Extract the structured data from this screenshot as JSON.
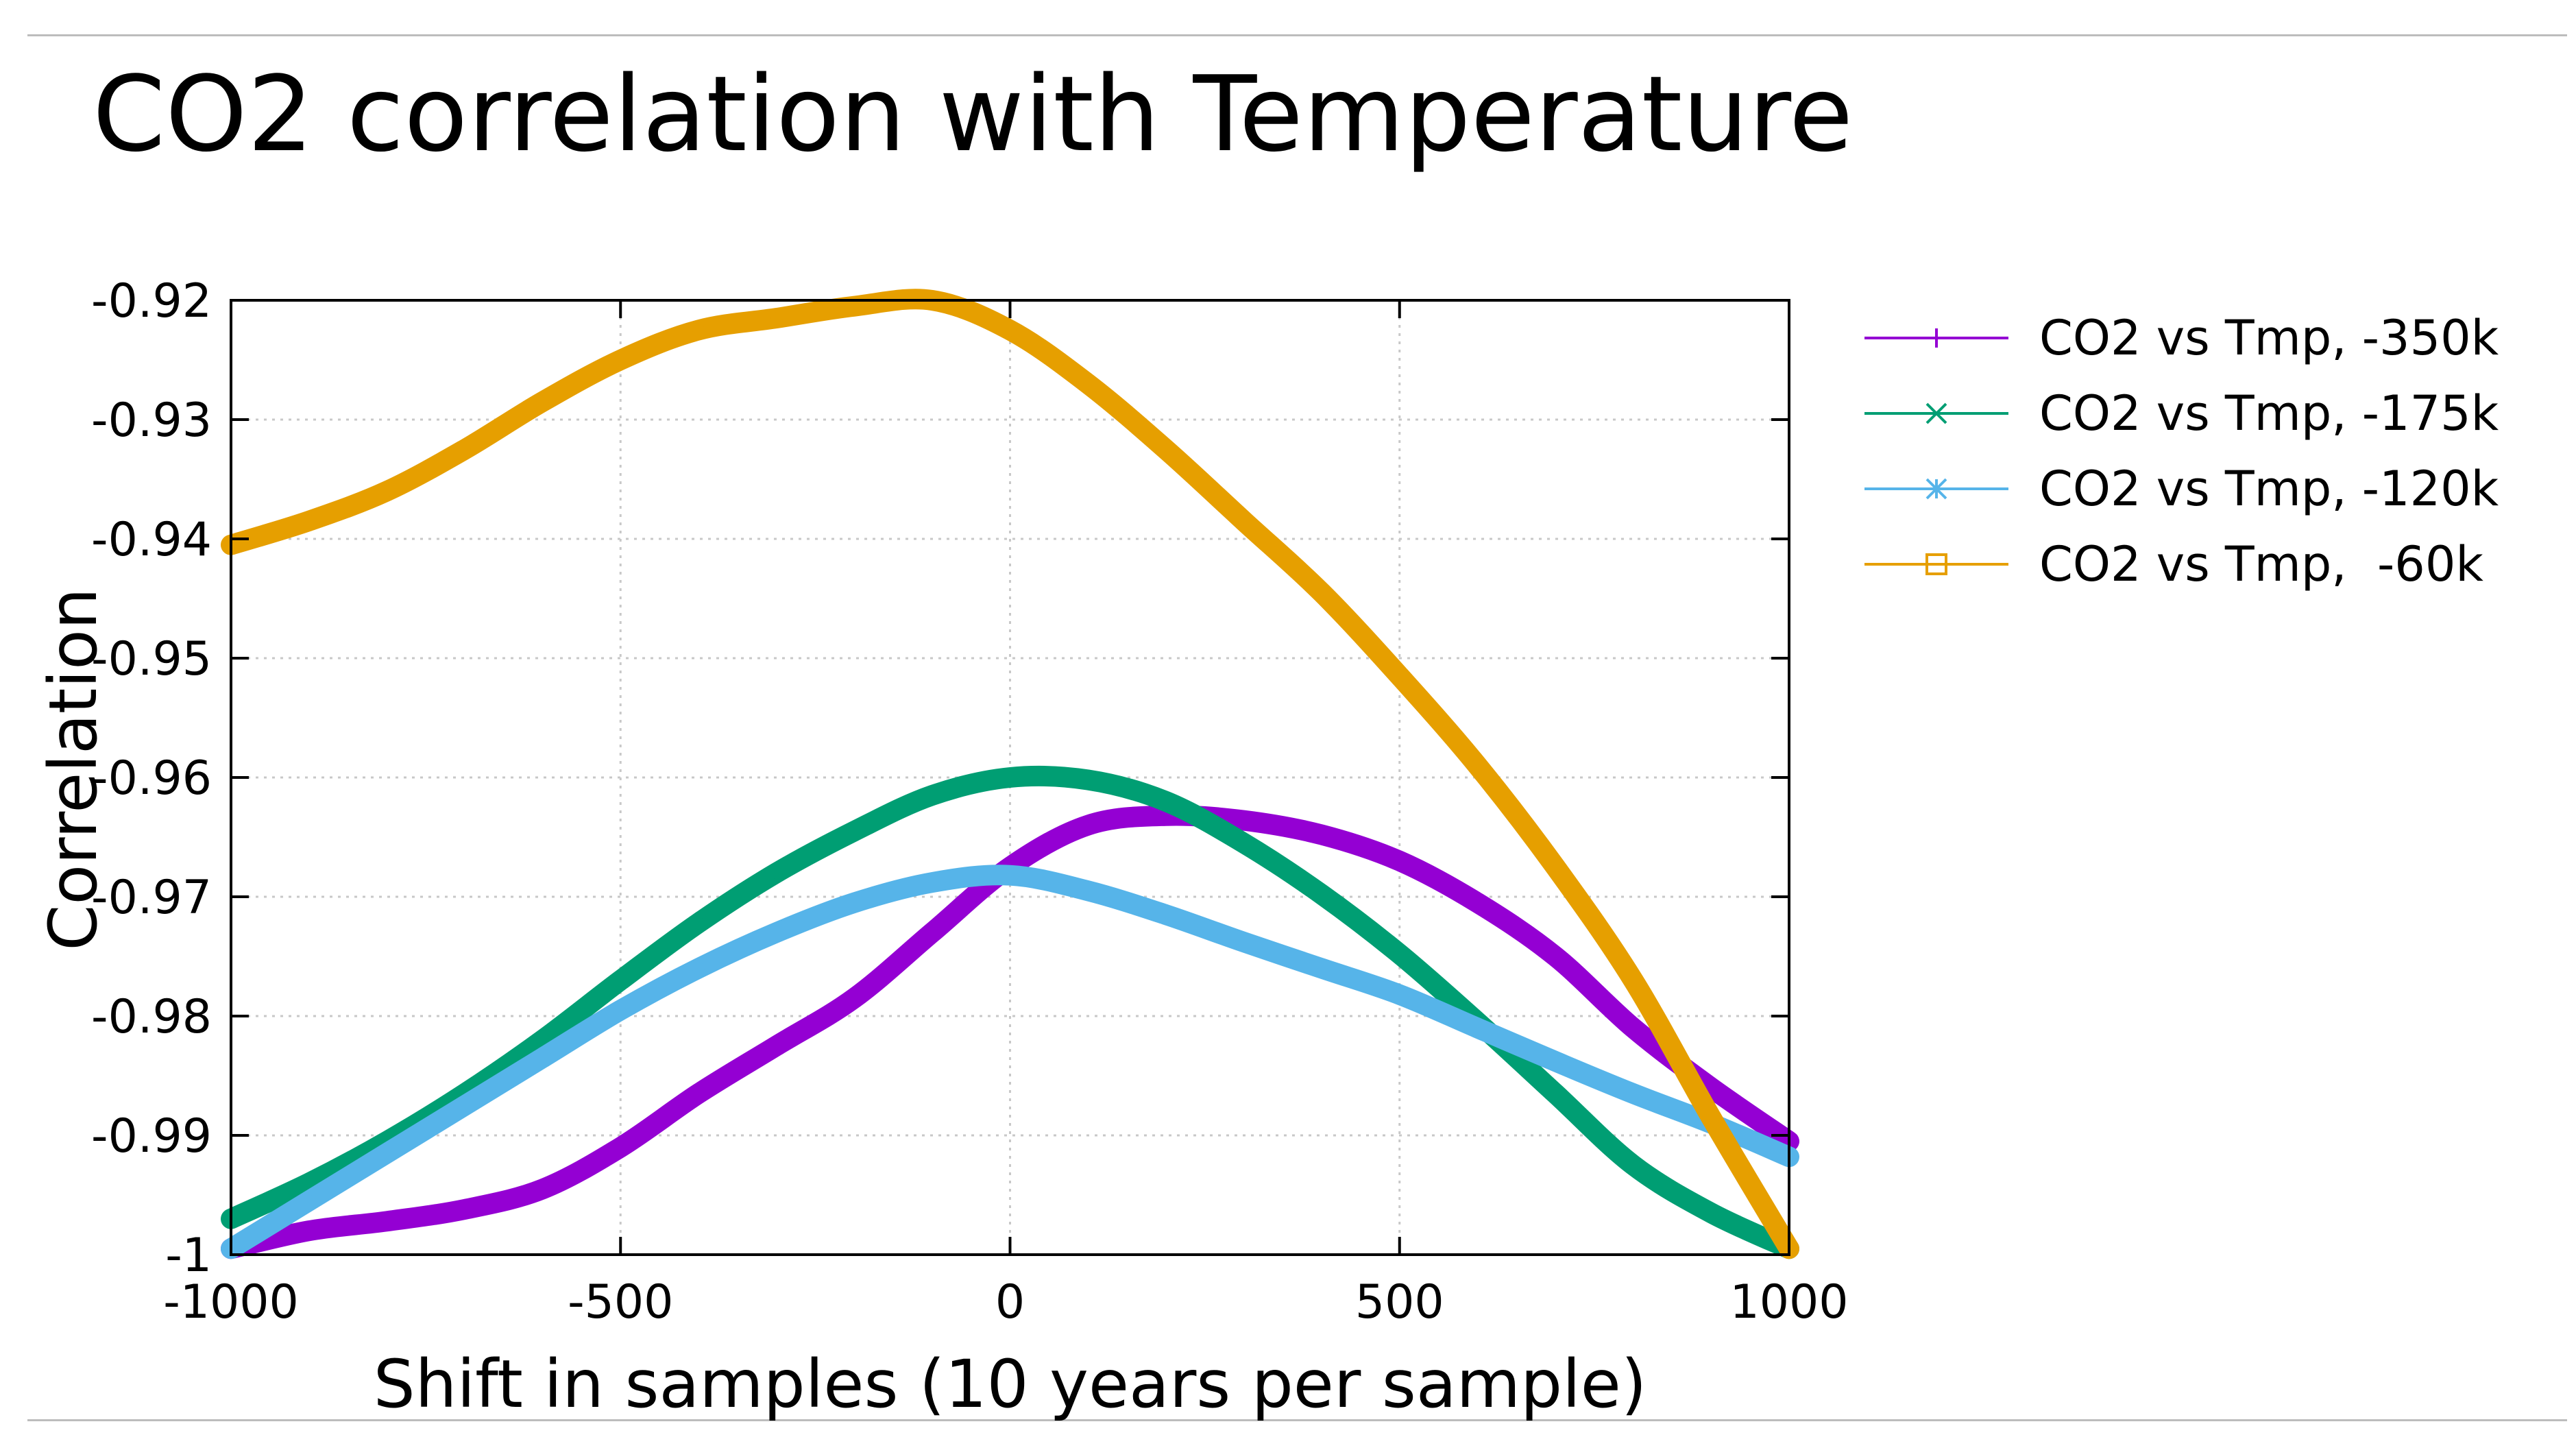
{
  "chart_data": {
    "type": "line",
    "title": "CO2 correlation with Temperature",
    "xlabel": "Shift in samples (10 years per sample)",
    "ylabel": "Correlation",
    "xlim": [
      -1000,
      1000
    ],
    "ylim": [
      -1,
      -0.92
    ],
    "xticks": [
      -1000,
      -500,
      0,
      500,
      1000
    ],
    "xtick_labels": [
      "-1000",
      "-500",
      "0",
      "500",
      "1000"
    ],
    "yticks": [
      -0.92,
      -0.93,
      -0.94,
      -0.95,
      -0.96,
      -0.97,
      -0.98,
      -0.99,
      -1
    ],
    "ytick_labels": [
      "-0.92",
      "-0.93",
      "-0.94",
      "-0.95",
      "-0.96",
      "-0.97",
      "-0.98",
      "-0.99",
      "-1"
    ],
    "grid": true,
    "legend_position": "outside-right-top",
    "series": [
      {
        "name": "CO2 vs Tmp, -350k",
        "color": "#9400d3",
        "marker": "plus",
        "x": [
          -1000,
          -900,
          -800,
          -700,
          -600,
          -500,
          -400,
          -300,
          -200,
          -100,
          0,
          100,
          200,
          300,
          400,
          500,
          600,
          700,
          800,
          900,
          1000
        ],
        "y": [
          -0.9995,
          -0.998,
          -0.9972,
          -0.9962,
          -0.9945,
          -0.991,
          -0.9865,
          -0.9825,
          -0.9785,
          -0.973,
          -0.9675,
          -0.964,
          -0.9632,
          -0.9636,
          -0.9648,
          -0.967,
          -0.9705,
          -0.975,
          -0.981,
          -0.986,
          -0.9905
        ]
      },
      {
        "name": "CO2 vs Tmp, -175k",
        "color": "#009e73",
        "marker": "cross",
        "x": [
          -1000,
          -900,
          -800,
          -700,
          -600,
          -500,
          -400,
          -300,
          -200,
          -100,
          0,
          100,
          200,
          300,
          400,
          500,
          600,
          700,
          800,
          900,
          1000
        ],
        "y": [
          -0.997,
          -0.994,
          -0.9905,
          -0.9865,
          -0.982,
          -0.977,
          -0.9722,
          -0.968,
          -0.9645,
          -0.9615,
          -0.96,
          -0.9602,
          -0.962,
          -0.9655,
          -0.9698,
          -0.9748,
          -0.9805,
          -0.9865,
          -0.9925,
          -0.9965,
          -0.9995
        ]
      },
      {
        "name": "CO2 vs Tmp, -120k",
        "color": "#56b4e9",
        "marker": "star",
        "x": [
          -1000,
          -900,
          -800,
          -700,
          -600,
          -500,
          -400,
          -300,
          -200,
          -100,
          0,
          100,
          200,
          300,
          400,
          500,
          600,
          700,
          800,
          900,
          1000
        ],
        "y": [
          -0.9995,
          -0.9955,
          -0.9915,
          -0.9875,
          -0.9835,
          -0.9795,
          -0.976,
          -0.973,
          -0.9705,
          -0.9688,
          -0.9682,
          -0.9695,
          -0.9715,
          -0.9738,
          -0.976,
          -0.9782,
          -0.981,
          -0.9838,
          -0.9865,
          -0.989,
          -0.9918
        ]
      },
      {
        "name": "CO2 vs Tmp,  -60k",
        "color": "#e69f00",
        "marker": "square",
        "x": [
          -1000,
          -900,
          -800,
          -700,
          -600,
          -500,
          -400,
          -300,
          -200,
          -100,
          0,
          100,
          200,
          300,
          400,
          500,
          600,
          700,
          800,
          900,
          1000
        ],
        "y": [
          -0.9405,
          -0.9385,
          -0.936,
          -0.9325,
          -0.9285,
          -0.925,
          -0.9225,
          -0.9215,
          -0.9205,
          -0.92,
          -0.9225,
          -0.927,
          -0.9325,
          -0.9385,
          -0.9445,
          -0.9515,
          -0.959,
          -0.9675,
          -0.977,
          -0.9885,
          -0.9995
        ]
      }
    ]
  }
}
